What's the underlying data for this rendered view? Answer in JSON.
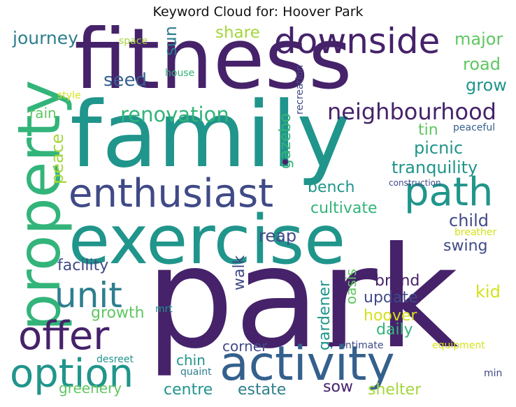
{
  "title": "Keyword Cloud for: Hoover Park",
  "palette": {
    "dark_purple": "#46226a",
    "indigo": "#404a87",
    "blue": "#35608d",
    "teal_blue": "#2e7e8e",
    "teal": "#20958b",
    "green": "#33b47a",
    "light_green": "#5fc761",
    "yellow_green": "#a5d63d",
    "yellow": "#d4e21a"
  },
  "words": {
    "fitness": "fitness",
    "family": "family",
    "park": "park",
    "exercise": "exercise",
    "property": "property",
    "enthusiast": "enthusiast",
    "activity": "activity",
    "downside": "downside",
    "path": "path",
    "offer": "offer",
    "option": "option",
    "unit": "unit",
    "neighbourhood": "neighbourhood",
    "renovation": "renovation",
    "journey": "journey",
    "share": "share",
    "major": "major",
    "road": "road",
    "grow": "grow",
    "seed": "seed",
    "sun": "sun",
    "space": "space",
    "house": "house",
    "style": "style",
    "rain": "rain",
    "peace": "peace",
    "gazebo": "gazebo",
    "recreation": "recreation",
    "tin": "tin",
    "peaceful": "peaceful",
    "picnic": "picnic",
    "tranquility": "tranquility",
    "construction": "construction",
    "bench": "bench",
    "cultivate": "cultivate",
    "child": "child",
    "reap": "reap",
    "swing": "swing",
    "breather": "breather",
    "facility": "facility",
    "walk": "walk",
    "brand": "brand",
    "oasis": "oasis",
    "update": "update",
    "kid": "kid",
    "gardener": "gardener",
    "hoover": "hoover",
    "growth": "growth",
    "daily": "daily",
    "mrt": "mrt",
    "corner": "corner",
    "intimate": "intimate",
    "equipment": "equipment",
    "chin": "chin",
    "desreet": "desreet",
    "quaint": "quaint",
    "min": "min",
    "greenery": "greenery",
    "centre": "centre",
    "estate": "estate",
    "sow": "sow",
    "shelter": "shelter"
  }
}
